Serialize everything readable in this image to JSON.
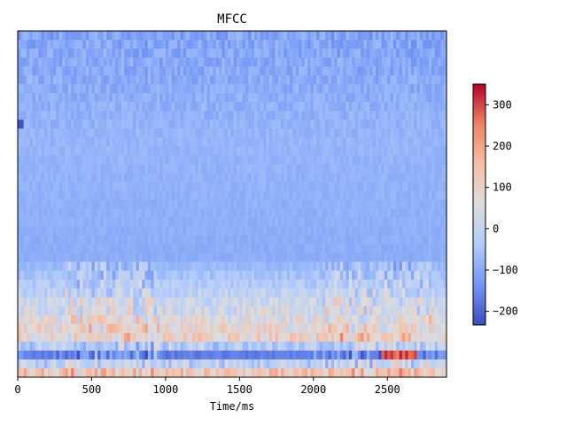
{
  "chart_data": {
    "type": "heatmap",
    "title": "MFCC",
    "xlabel": "Time/ms",
    "ylabel": "",
    "xlim": [
      0,
      2900
    ],
    "x_ticks": [
      0,
      500,
      1000,
      1500,
      2000,
      2500
    ],
    "n_coefficients": 39,
    "frame_step_ms": 20,
    "colormap": "coolwarm",
    "colorbar": {
      "vmin": -233,
      "vmax": 350,
      "ticks": [
        -200,
        -100,
        0,
        100,
        200,
        300
      ]
    },
    "colormap_stops": [
      "#3b4cc0",
      "#7396f5",
      "#b0cbfc",
      "#dddddd",
      "#f6bfa6",
      "#ee8468",
      "#b40426"
    ],
    "row_profiles": [
      {
        "row": 0,
        "mean": -110,
        "spread": 40,
        "note": "top coefficient band, ~-60 to -140"
      },
      {
        "row": 12,
        "mean": -80,
        "spread": 15,
        "note": "quiet band"
      },
      {
        "row": 25,
        "mean": -95,
        "spread": 10,
        "note": "flat separator row"
      },
      {
        "row": 34,
        "mean": 100,
        "spread": 80,
        "note": "warm band around 350-700ms and 2100-2750ms"
      },
      {
        "row": 36,
        "mean": -150,
        "spread": 60,
        "note": "cool band 1000-2000ms, hot ~330 near 2600ms"
      },
      {
        "row": 38,
        "mean": 120,
        "spread": 80,
        "note": "bottom band, warm"
      }
    ]
  }
}
